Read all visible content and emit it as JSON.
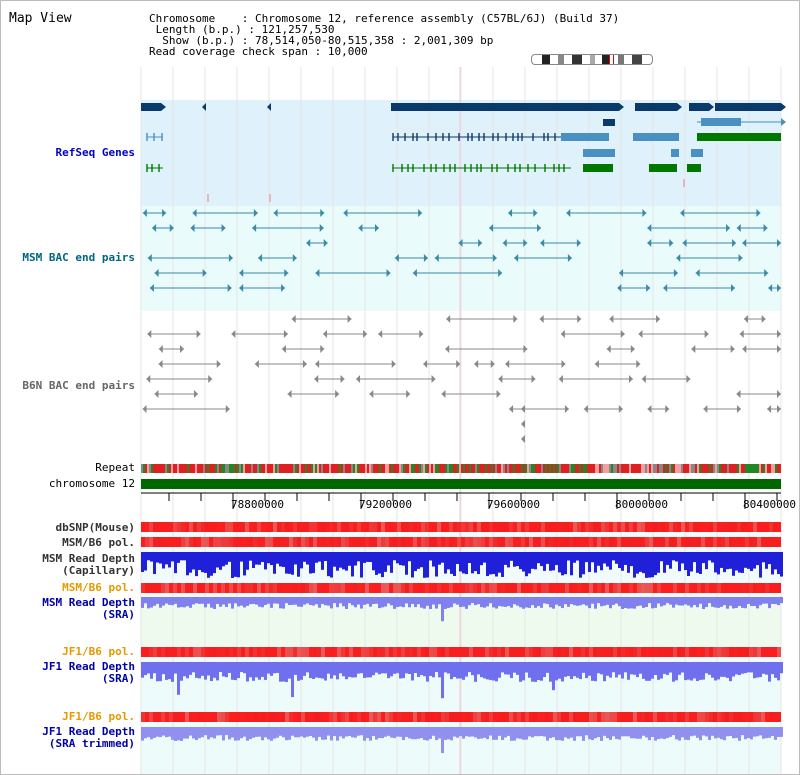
{
  "page": {
    "title": "Map View"
  },
  "info": {
    "chromosome_label": "Chromosome",
    "chromosome_value": "Chromosome 12, reference assembly (C57BL/6J) (Build 37)",
    "length_label": "Length (b.p.)",
    "length_value": "121,257,530",
    "show_label": "Show (b.p.)",
    "show_value": "78,514,050-80,515,358 : 2,001,309 bp",
    "coverage_label": "Read coverage check span",
    "coverage_value": "10,000"
  },
  "tracks": {
    "refseq": "RefSeq Genes",
    "msm_bac": "MSM BAC end pairs",
    "b6n_bac": "B6N BAC end pairs",
    "repeat": "Repeat",
    "chromosome": "chromosome 12",
    "dbsnp": "dbSNP(Mouse)",
    "msm_b6_pol_1": "MSM/B6 pol.",
    "msm_depth_cap_1": "MSM Read Depth",
    "msm_depth_cap_2": "(Capillary)",
    "msm_b6_pol_2": "MSM/B6 pol.",
    "msm_depth_sra_1": "MSM Read Depth",
    "msm_depth_sra_2": "(SRA)",
    "jf1_b6_pol_1": "JF1/B6 pol.",
    "jf1_depth_sra_1": "JF1 Read Depth",
    "jf1_depth_sra_2": "(SRA)",
    "jf1_b6_pol_2": "JF1/B6 pol.",
    "jf1_depth_trim_1": "JF1 Read Depth",
    "jf1_depth_trim_2": "(SRA trimmed)"
  },
  "axis": {
    "ticks": [
      "78800000",
      "79200000",
      "79600000",
      "80000000",
      "80400000"
    ]
  },
  "colors": {
    "refseq_bg": "#dff1fb",
    "msm_bac_bg": "#eafbfb",
    "refseq_label": "#0000cc",
    "msm_bac_label": "#006680",
    "b6n_bac_label": "#666666",
    "pol_label_orange": "#e69900",
    "depth_label_blue": "#0000aa",
    "chromosome_bar": "#006600",
    "gene_dark": "#0a3a6b",
    "gene_green": "#007700",
    "gene_light": "#4a90c0"
  }
}
